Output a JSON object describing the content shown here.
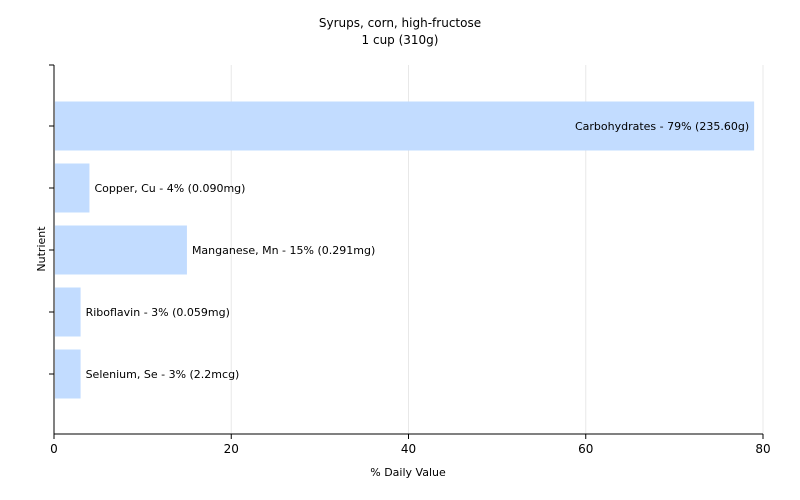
{
  "chart_data": {
    "type": "bar",
    "orientation": "horizontal",
    "title": "Syrups, corn, high-fructose",
    "subtitle": "1 cup (310g)",
    "xlabel": "% Daily Value",
    "ylabel": "Nutrient",
    "xlim": [
      0,
      80
    ],
    "xticks": [
      0,
      20,
      40,
      60,
      80
    ],
    "grid": true,
    "legend": "none",
    "bar_color": "#c2dcff",
    "categories": [
      "Carbohydrates",
      "Copper, Cu",
      "Manganese, Mn",
      "Riboflavin",
      "Selenium, Se"
    ],
    "values": [
      79,
      4,
      15,
      3,
      3
    ],
    "labels": [
      "Carbohydrates - 79% (235.60g)",
      "Copper, Cu - 4% (0.090mg)",
      "Manganese, Mn - 15% (0.291mg)",
      "Riboflavin - 3% (0.059mg)",
      "Selenium, Se - 3% (2.2mcg)"
    ]
  }
}
